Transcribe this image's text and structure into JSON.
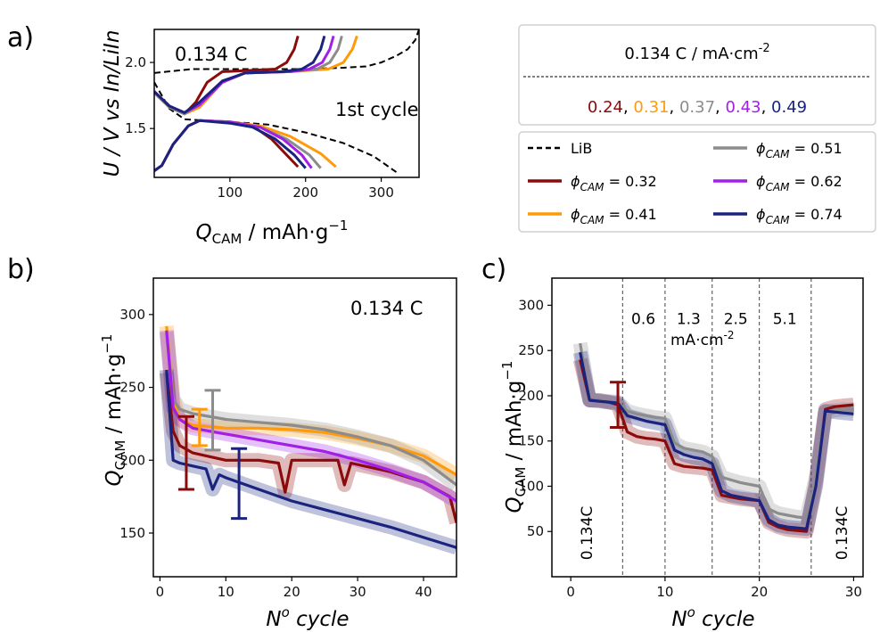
{
  "panel_labels": [
    "a)",
    "b)",
    "c)"
  ],
  "colors": {
    "c032": "#8b0b0b",
    "c041": "#ff9a0a",
    "c051": "#8c8c8c",
    "c062": "#a21fe8",
    "c074": "#1a237e",
    "lib": "#000000"
  },
  "rate_box": {
    "title": "0.134 C / mA·cm",
    "title_sup": "-2",
    "values": [
      {
        "text": "0.24",
        "color": "#8b0b0b"
      },
      {
        "text": "0.31",
        "color": "#ff9a0a"
      },
      {
        "text": "0.37",
        "color": "#8c8c8c"
      },
      {
        "text": "0.43",
        "color": "#a21fe8"
      },
      {
        "text": "0.49",
        "color": "#1a237e"
      }
    ],
    "separator": ", "
  },
  "legend": {
    "lib": "LiB",
    "phi_symbol": "ϕ",
    "phi_sub": "CAM",
    "items": [
      {
        "value": "= 0.32",
        "color": "#8b0b0b"
      },
      {
        "value": "= 0.41",
        "color": "#ff9a0a"
      },
      {
        "value": "= 0.51",
        "color": "#8c8c8c"
      },
      {
        "value": "= 0.62",
        "color": "#a21fe8"
      },
      {
        "value": "= 0.74",
        "color": "#1a237e"
      }
    ]
  },
  "chart_data": [
    {
      "id": "a",
      "type": "line",
      "annotation": "0.134 C",
      "annotation2": "1st cycle",
      "ylabel": "U / V vs In/LiIn",
      "xlabel_main": "Q",
      "xlabel_sub": "CAM",
      "xlabel_unit": " / mAh·g",
      "xlabel_sup": "−1",
      "xlim": [
        0,
        350
      ],
      "ylim": [
        1.13,
        2.25
      ],
      "xticks": [
        100,
        200,
        300
      ],
      "yticks": [
        1.5,
        2.0
      ],
      "ytick_labels": [
        "1.5",
        "2.0"
      ],
      "series": [
        {
          "name": "LiB",
          "dashed": true,
          "color": "#000000",
          "charge": [
            [
              0,
              1.85
            ],
            [
              20,
              1.65
            ],
            [
              40,
              1.57
            ],
            [
              70,
              1.56
            ],
            [
              100,
              1.55
            ],
            [
              150,
              1.53
            ],
            [
              200,
              1.47
            ],
            [
              250,
              1.39
            ],
            [
              290,
              1.29
            ],
            [
              320,
              1.17
            ]
          ],
          "discharge": [
            [
              0,
              1.92
            ],
            [
              50,
              1.95
            ],
            [
              100,
              1.95
            ],
            [
              150,
              1.95
            ],
            [
              200,
              1.95
            ],
            [
              250,
              1.96
            ],
            [
              280,
              1.97
            ],
            [
              300,
              2.0
            ],
            [
              320,
              2.05
            ],
            [
              335,
              2.1
            ],
            [
              345,
              2.17
            ],
            [
              350,
              2.25
            ]
          ]
        },
        {
          "name": "= 0.32",
          "color": "#8b0b0b",
          "charge": [
            [
              0,
              1.18
            ],
            [
              10,
              1.22
            ],
            [
              25,
              1.38
            ],
            [
              45,
              1.52
            ],
            [
              60,
              1.56
            ],
            [
              100,
              1.55
            ],
            [
              130,
              1.52
            ],
            [
              155,
              1.42
            ],
            [
              175,
              1.3
            ],
            [
              190,
              1.21
            ]
          ],
          "discharge": [
            [
              0,
              1.78
            ],
            [
              20,
              1.67
            ],
            [
              40,
              1.61
            ],
            [
              55,
              1.7
            ],
            [
              70,
              1.85
            ],
            [
              90,
              1.93
            ],
            [
              130,
              1.94
            ],
            [
              160,
              1.95
            ],
            [
              175,
              2.0
            ],
            [
              185,
              2.1
            ],
            [
              190,
              2.2
            ]
          ]
        },
        {
          "name": "= 0.41",
          "color": "#ff9a0a",
          "charge": [
            [
              0,
              1.18
            ],
            [
              10,
              1.22
            ],
            [
              25,
              1.38
            ],
            [
              45,
              1.52
            ],
            [
              60,
              1.56
            ],
            [
              100,
              1.55
            ],
            [
              140,
              1.52
            ],
            [
              180,
              1.44
            ],
            [
              220,
              1.31
            ],
            [
              240,
              1.21
            ]
          ],
          "discharge": [
            [
              0,
              1.77
            ],
            [
              20,
              1.66
            ],
            [
              40,
              1.61
            ],
            [
              60,
              1.66
            ],
            [
              90,
              1.85
            ],
            [
              120,
              1.92
            ],
            [
              180,
              1.93
            ],
            [
              230,
              1.95
            ],
            [
              250,
              2.0
            ],
            [
              262,
              2.1
            ],
            [
              268,
              2.2
            ]
          ]
        },
        {
          "name": "= 0.51",
          "color": "#8c8c8c",
          "charge": [
            [
              0,
              1.18
            ],
            [
              10,
              1.22
            ],
            [
              25,
              1.38
            ],
            [
              45,
              1.52
            ],
            [
              60,
              1.56
            ],
            [
              100,
              1.55
            ],
            [
              140,
              1.51
            ],
            [
              175,
              1.42
            ],
            [
              205,
              1.3
            ],
            [
              220,
              1.2
            ]
          ],
          "discharge": [
            [
              0,
              1.77
            ],
            [
              20,
              1.66
            ],
            [
              40,
              1.61
            ],
            [
              60,
              1.68
            ],
            [
              90,
              1.85
            ],
            [
              120,
              1.92
            ],
            [
              180,
              1.93
            ],
            [
              215,
              1.95
            ],
            [
              232,
              2.0
            ],
            [
              243,
              2.1
            ],
            [
              248,
              2.2
            ]
          ]
        },
        {
          "name": "= 0.62",
          "color": "#a21fe8",
          "charge": [
            [
              0,
              1.18
            ],
            [
              10,
              1.22
            ],
            [
              25,
              1.38
            ],
            [
              45,
              1.52
            ],
            [
              60,
              1.56
            ],
            [
              100,
              1.55
            ],
            [
              140,
              1.51
            ],
            [
              170,
              1.42
            ],
            [
              195,
              1.3
            ],
            [
              208,
              1.2
            ]
          ],
          "discharge": [
            [
              0,
              1.78
            ],
            [
              20,
              1.67
            ],
            [
              40,
              1.62
            ],
            [
              60,
              1.68
            ],
            [
              90,
              1.85
            ],
            [
              120,
              1.92
            ],
            [
              180,
              1.93
            ],
            [
              205,
              1.95
            ],
            [
              222,
              2.0
            ],
            [
              232,
              2.1
            ],
            [
              237,
              2.2
            ]
          ]
        },
        {
          "name": "= 0.74",
          "color": "#1a237e",
          "charge": [
            [
              0,
              1.18
            ],
            [
              10,
              1.22
            ],
            [
              25,
              1.38
            ],
            [
              45,
              1.52
            ],
            [
              60,
              1.56
            ],
            [
              100,
              1.54
            ],
            [
              130,
              1.51
            ],
            [
              160,
              1.42
            ],
            [
              185,
              1.3
            ],
            [
              200,
              1.2
            ]
          ],
          "discharge": [
            [
              0,
              1.78
            ],
            [
              20,
              1.67
            ],
            [
              40,
              1.62
            ],
            [
              60,
              1.7
            ],
            [
              90,
              1.86
            ],
            [
              120,
              1.92
            ],
            [
              170,
              1.93
            ],
            [
              195,
              1.95
            ],
            [
              210,
              2.0
            ],
            [
              220,
              2.1
            ],
            [
              225,
              2.2
            ]
          ]
        }
      ]
    },
    {
      "id": "b",
      "type": "line",
      "annotation": "0.134 C",
      "ylabel_main": "Q",
      "ylabel_sub": "CAM",
      "ylabel_unit": " / mAh·g",
      "ylabel_sup": "−1",
      "xlabel_main": "N",
      "xlabel_sup": "o",
      "xlabel_rest": " cycle",
      "xlim": [
        -1,
        45
      ],
      "ylim": [
        120,
        325
      ],
      "xticks": [
        0,
        10,
        20,
        30,
        40
      ],
      "yticks": [
        150,
        200,
        250,
        300
      ],
      "series": [
        {
          "name": "= 0.32",
          "color": "#8b0b0b",
          "x": [
            1,
            2,
            3,
            5,
            10,
            15,
            18,
            19,
            20,
            25,
            27,
            28,
            29,
            35,
            40,
            44,
            45
          ],
          "y": [
            260,
            220,
            210,
            205,
            200,
            200,
            198,
            178,
            200,
            200,
            200,
            183,
            198,
            192,
            185,
            175,
            157
          ]
        },
        {
          "name": "= 0.41",
          "color": "#ff9a0a",
          "x": [
            1,
            2,
            3,
            5,
            10,
            15,
            20,
            25,
            30,
            35,
            40,
            45
          ],
          "y": [
            292,
            242,
            228,
            224,
            222,
            222,
            221,
            219,
            215,
            210,
            203,
            190
          ]
        },
        {
          "name": "= 0.51",
          "color": "#8c8c8c",
          "x": [
            1,
            2,
            3,
            5,
            10,
            15,
            20,
            25,
            30,
            35,
            40,
            45
          ],
          "y": [
            288,
            242,
            235,
            232,
            228,
            226,
            224,
            221,
            216,
            210,
            200,
            183
          ]
        },
        {
          "name": "= 0.62",
          "color": "#a21fe8",
          "x": [
            1,
            2,
            3,
            5,
            10,
            15,
            20,
            25,
            30,
            35,
            40,
            45
          ],
          "y": [
            289,
            236,
            228,
            222,
            218,
            214,
            210,
            206,
            200,
            193,
            185,
            172
          ]
        },
        {
          "name": "= 0.74",
          "color": "#1a237e",
          "x": [
            1,
            2,
            3,
            5,
            7,
            8,
            9,
            10,
            15,
            20,
            25,
            30,
            35,
            40,
            45
          ],
          "y": [
            262,
            200,
            198,
            196,
            194,
            180,
            190,
            188,
            180,
            172,
            166,
            160,
            154,
            147,
            140
          ]
        }
      ],
      "error_bars": [
        {
          "x": 4,
          "y": 205,
          "lo": 180,
          "hi": 230,
          "color": "#8b0b0b"
        },
        {
          "x": 8,
          "y": 227,
          "lo": 207,
          "hi": 248,
          "color": "#8c8c8c"
        },
        {
          "x": 12,
          "y": 183,
          "lo": 160,
          "hi": 208,
          "color": "#1a237e"
        },
        {
          "x": 6,
          "y": 220,
          "lo": 210,
          "hi": 235,
          "color": "#ff9a0a"
        }
      ]
    },
    {
      "id": "c",
      "type": "line",
      "ylabel_main": "Q",
      "ylabel_sub": "CAM",
      "ylabel_unit": " / mAh·g",
      "ylabel_sup": "−1",
      "xlabel_main": "N",
      "xlabel_sup": "o",
      "xlabel_rest": " cycle",
      "xlim": [
        -2,
        31
      ],
      "ylim": [
        0,
        330
      ],
      "xticks": [
        0,
        10,
        20,
        30
      ],
      "yticks": [
        50,
        100,
        150,
        200,
        250,
        300
      ],
      "vlines": [
        5.5,
        10,
        15,
        20,
        25.5
      ],
      "segment_labels": [
        {
          "x": 7.7,
          "y": 285,
          "text": "0.6"
        },
        {
          "x": 12.5,
          "y": 285,
          "text": "1.3"
        },
        {
          "x": 17.5,
          "y": 285,
          "text": "2.5"
        },
        {
          "x": 22.7,
          "y": 285,
          "text": "5.1"
        }
      ],
      "unit_label": "mA·cm",
      "unit_sup": "-2",
      "side_labels": [
        "0.134C",
        "0.134C"
      ],
      "series": [
        {
          "name": "= 0.32",
          "color": "#8b0b0b",
          "x": [
            1,
            2,
            3,
            4,
            5,
            6,
            7,
            8,
            9,
            10,
            11,
            12,
            13,
            14,
            15,
            16,
            17,
            18,
            19,
            20,
            21,
            22,
            23,
            24,
            25,
            26,
            27,
            28,
            29,
            30
          ],
          "y": [
            240,
            195,
            195,
            193,
            190,
            160,
            155,
            153,
            152,
            150,
            125,
            122,
            121,
            120,
            118,
            90,
            88,
            86,
            85,
            84,
            60,
            55,
            52,
            51,
            50,
            105,
            185,
            188,
            189,
            190
          ]
        },
        {
          "name": "= 0.51",
          "color": "#8c8c8c",
          "x": [
            1,
            2,
            3,
            4,
            5,
            6,
            7,
            8,
            9,
            10,
            11,
            12,
            13,
            14,
            15,
            16,
            17,
            18,
            19,
            20,
            21,
            22,
            23,
            24,
            25,
            26,
            27,
            28,
            29,
            30
          ],
          "y": [
            258,
            195,
            195,
            194,
            193,
            183,
            180,
            178,
            176,
            175,
            148,
            142,
            140,
            138,
            133,
            110,
            107,
            104,
            102,
            100,
            75,
            70,
            68,
            66,
            65,
            110,
            182,
            184,
            185,
            185
          ]
        },
        {
          "name": "= 0.74",
          "color": "#1a237e",
          "x": [
            1,
            2,
            3,
            4,
            5,
            6,
            7,
            8,
            9,
            10,
            11,
            12,
            13,
            14,
            15,
            16,
            17,
            18,
            19,
            20,
            21,
            22,
            23,
            24,
            25,
            26,
            27,
            28,
            29,
            30
          ],
          "y": [
            248,
            195,
            194,
            193,
            192,
            178,
            175,
            172,
            170,
            168,
            140,
            135,
            132,
            130,
            125,
            95,
            90,
            88,
            86,
            84,
            63,
            57,
            55,
            54,
            53,
            100,
            183,
            182,
            181,
            180
          ]
        }
      ],
      "error_bars": [
        {
          "x": 5,
          "y": 190,
          "lo": 165,
          "hi": 215,
          "color": "#8b0b0b"
        }
      ]
    }
  ]
}
